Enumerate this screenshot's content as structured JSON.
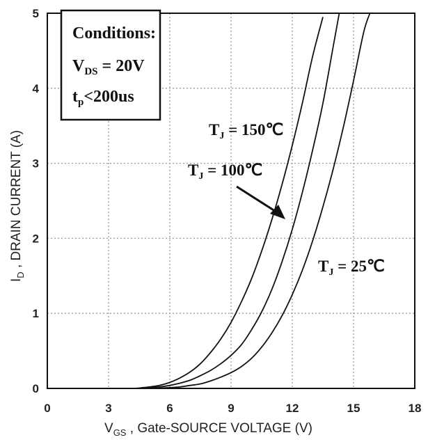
{
  "chart_data": {
    "type": "line",
    "xlabel": {
      "main": "V",
      "sub": "GS",
      "rest": " , Gate-SOURCE VOLTAGE (V)"
    },
    "ylabel": {
      "main": "I",
      "sub": "D",
      "rest": " , DRAIN CURRENT (A)"
    },
    "xlim": [
      0,
      18
    ],
    "ylim": [
      0,
      5
    ],
    "xticks": [
      "0",
      "3",
      "6",
      "9",
      "12",
      "15",
      "18"
    ],
    "yticks": [
      "0",
      "1",
      "2",
      "3",
      "4",
      "5"
    ],
    "grid": true,
    "conditions": {
      "title": "Conditions:",
      "line1": {
        "main": "V",
        "sub": "DS",
        "rest": " = 20V"
      },
      "line2": {
        "main": "t",
        "sub": "p",
        "rest": "<200us"
      }
    },
    "series": [
      {
        "name": {
          "main": "T",
          "sub": "J",
          "rest": " = 150℃"
        },
        "x": [
          4.3,
          5.0,
          5.5,
          6.0,
          6.5,
          7.0,
          7.5,
          8.0,
          8.5,
          9.0,
          9.5,
          10.0,
          10.5,
          11.0,
          11.5,
          12.0,
          12.5,
          13.0,
          13.5
        ],
        "y": [
          0.0,
          0.02,
          0.04,
          0.08,
          0.14,
          0.22,
          0.33,
          0.48,
          0.66,
          0.88,
          1.15,
          1.46,
          1.83,
          2.25,
          2.72,
          3.24,
          3.81,
          4.43,
          4.95
        ]
      },
      {
        "name": {
          "main": "T",
          "sub": "J",
          "rest": " = 100℃"
        },
        "x": [
          4.5,
          5.0,
          5.5,
          6.0,
          6.5,
          7.0,
          7.5,
          8.0,
          8.5,
          9.0,
          9.5,
          10.0,
          10.5,
          11.0,
          11.5,
          12.0,
          12.5,
          13.0,
          13.5,
          14.0,
          14.3
        ],
        "y": [
          0.0,
          0.01,
          0.02,
          0.04,
          0.07,
          0.11,
          0.17,
          0.24,
          0.33,
          0.44,
          0.58,
          0.78,
          1.02,
          1.32,
          1.69,
          2.12,
          2.62,
          3.18,
          3.8,
          4.55,
          5.0
        ]
      },
      {
        "name": {
          "main": "T",
          "sub": "J",
          "rest": " = 25℃"
        },
        "x": [
          5.2,
          6.0,
          6.5,
          7.0,
          7.5,
          8.0,
          8.5,
          9.0,
          9.5,
          10.0,
          10.5,
          11.0,
          11.5,
          12.0,
          12.5,
          13.0,
          13.5,
          14.0,
          14.5,
          15.0,
          15.5,
          15.8
        ],
        "y": [
          0.0,
          0.01,
          0.02,
          0.04,
          0.06,
          0.1,
          0.15,
          0.21,
          0.29,
          0.4,
          0.55,
          0.74,
          0.97,
          1.25,
          1.58,
          1.97,
          2.42,
          2.92,
          3.48,
          4.1,
          4.75,
          5.0
        ]
      }
    ]
  }
}
